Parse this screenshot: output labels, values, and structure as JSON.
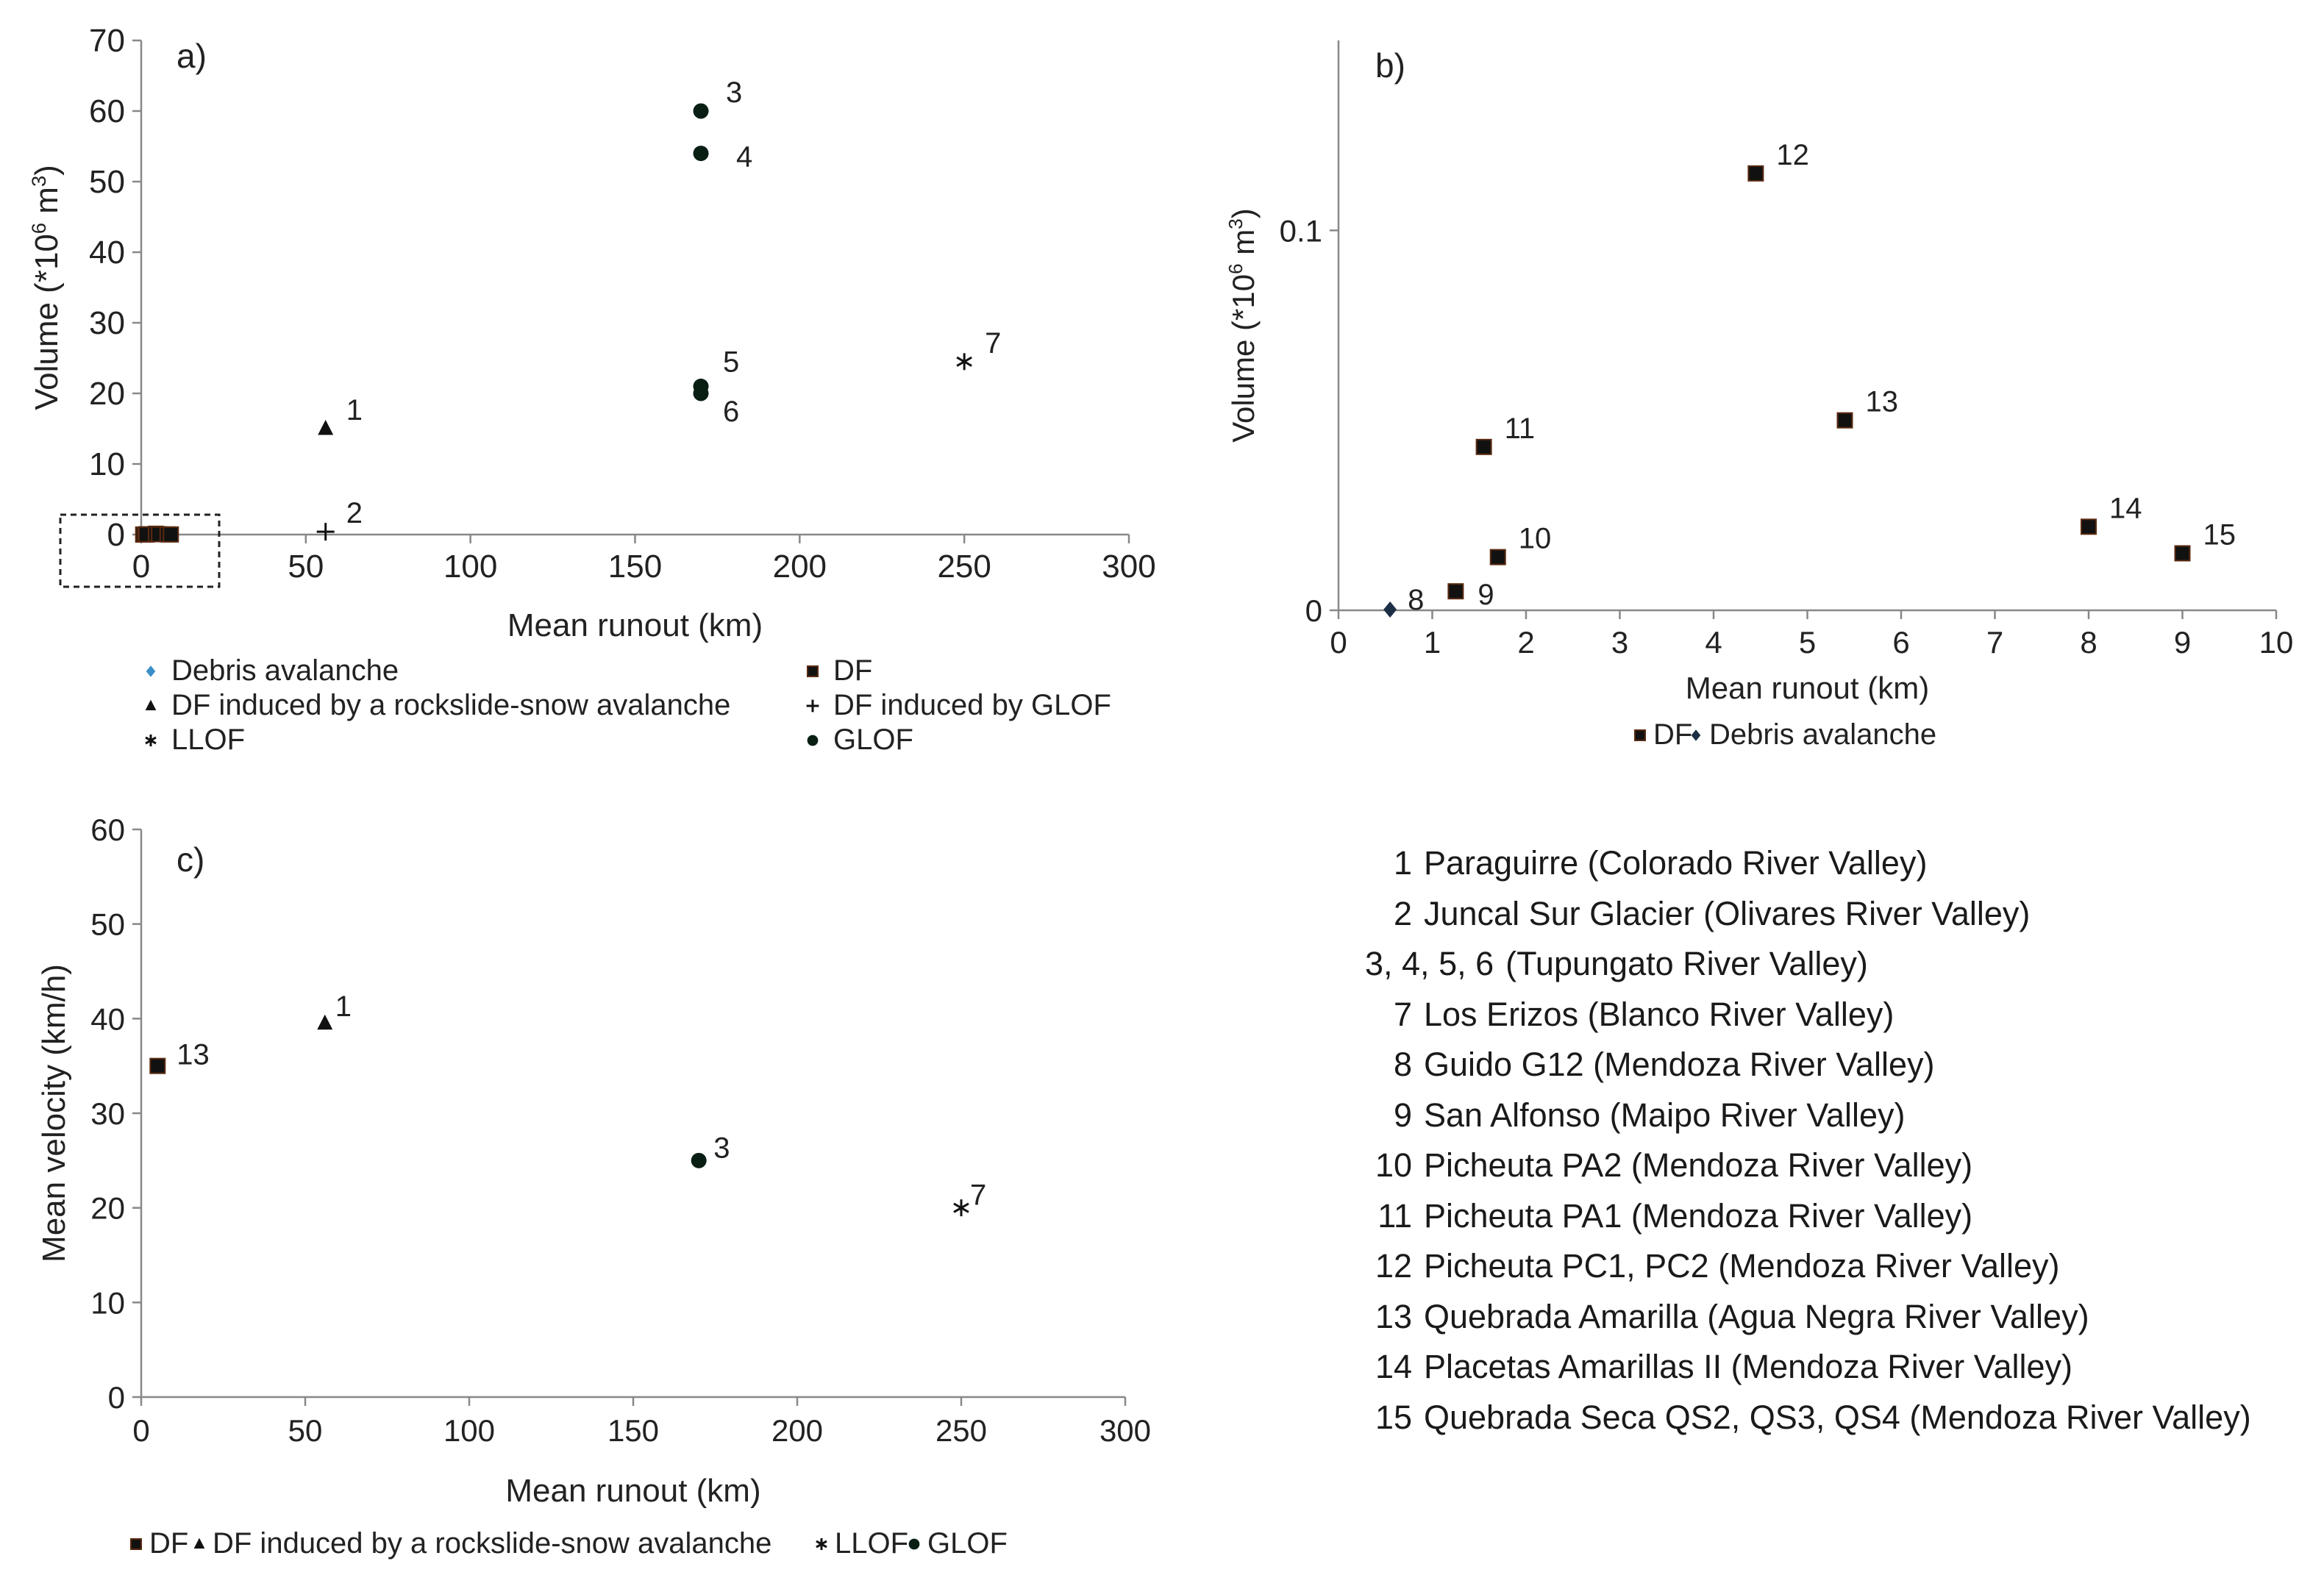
{
  "chart_data": [
    {
      "id": "a",
      "type": "scatter",
      "panel_label": "a)",
      "xlabel": "Mean runout (km)",
      "ylabel": "Volume (*10",
      "ylabel_exp": "6",
      "ylabel_unit": " m",
      "ylabel_unit_exp": "3",
      "ylabel_close": ")",
      "xlim": [
        0,
        300
      ],
      "ylim": [
        0,
        70
      ],
      "xticks": [
        0,
        50,
        100,
        150,
        200,
        250,
        300
      ],
      "yticks": [
        0,
        10,
        20,
        30,
        40,
        50,
        60,
        70
      ],
      "inset_box": true,
      "series": [
        {
          "name": "Debris avalanche",
          "marker": "diamond",
          "color": "#3a8fc7",
          "points": []
        },
        {
          "name": "DF",
          "marker": "square",
          "color": "#111111",
          "points": [
            {
              "x": 0.6,
              "y": 0.0002
            },
            {
              "x": 1.25,
              "y": 0.005
            },
            {
              "x": 1.7,
              "y": 0.014
            },
            {
              "x": 1.55,
              "y": 0.043
            },
            {
              "x": 4.45,
              "y": 0.115
            },
            {
              "x": 5.4,
              "y": 0.05
            },
            {
              "x": 8.0,
              "y": 0.022
            },
            {
              "x": 9.0,
              "y": 0.015
            }
          ]
        },
        {
          "name": "DF induced by a rockslide-snow avalanche",
          "marker": "triangle",
          "color": "#111111",
          "points": [
            {
              "x": 56,
              "y": 15,
              "label": "1"
            }
          ]
        },
        {
          "name": "DF induced by GLOF",
          "marker": "plus",
          "color": "#111111",
          "points": [
            {
              "x": 56,
              "y": 0.4,
              "label": "2"
            }
          ]
        },
        {
          "name": "LLOF",
          "marker": "asterisk",
          "color": "#111111",
          "points": [
            {
              "x": 250,
              "y": 24.5,
              "label": "7"
            }
          ]
        },
        {
          "name": "GLOF",
          "marker": "circle",
          "color": "#0a1f14",
          "points": [
            {
              "x": 170,
              "y": 60,
              "label": "3"
            },
            {
              "x": 170,
              "y": 54,
              "label": "4"
            },
            {
              "x": 170,
              "y": 21,
              "label": "5"
            },
            {
              "x": 170,
              "y": 20,
              "label": "6"
            }
          ]
        }
      ],
      "legend": [
        "Debris avalanche",
        "DF",
        "DF induced by a rockslide-snow avalanche",
        "DF induced by GLOF",
        "LLOF",
        "GLOF"
      ]
    },
    {
      "id": "b",
      "type": "scatter",
      "panel_label": "b)",
      "xlabel": "Mean runout (km)",
      "ylabel": "Volume (*10",
      "ylabel_exp": "6",
      "ylabel_unit": " m",
      "ylabel_unit_exp": "3",
      "ylabel_close": ")",
      "xlim": [
        0,
        10
      ],
      "ylim": [
        0,
        0.15
      ],
      "xticks": [
        0,
        1,
        2,
        3,
        4,
        5,
        6,
        7,
        8,
        9,
        10
      ],
      "yticks": [
        0,
        0.1
      ],
      "ytick_labels": [
        "0",
        "0.1"
      ],
      "series": [
        {
          "name": "DF",
          "marker": "square",
          "color": "#111111",
          "points": [
            {
              "x": 1.25,
              "y": 0.005,
              "label": "9"
            },
            {
              "x": 1.7,
              "y": 0.014,
              "label": "10"
            },
            {
              "x": 1.55,
              "y": 0.043,
              "label": "11"
            },
            {
              "x": 4.45,
              "y": 0.115,
              "label": "12"
            },
            {
              "x": 5.4,
              "y": 0.05,
              "label": "13"
            },
            {
              "x": 8.0,
              "y": 0.022,
              "label": "14"
            },
            {
              "x": 9.0,
              "y": 0.015,
              "label": "15"
            }
          ]
        },
        {
          "name": "Debris avalanche",
          "marker": "diamond",
          "color": "#1c2f45",
          "points": [
            {
              "x": 0.55,
              "y": 0.0002,
              "label": "8"
            }
          ]
        }
      ],
      "legend": [
        "DF",
        "Debris avalanche"
      ]
    },
    {
      "id": "c",
      "type": "scatter",
      "panel_label": "c)",
      "xlabel": "Mean runout (km)",
      "ylabel": "Mean velocity (km/h)",
      "xlim": [
        0,
        300
      ],
      "ylim": [
        0,
        60
      ],
      "xticks": [
        0,
        50,
        100,
        150,
        200,
        250,
        300
      ],
      "yticks": [
        0,
        10,
        20,
        30,
        40,
        50,
        60
      ],
      "series": [
        {
          "name": "DF",
          "marker": "square",
          "color": "#111111",
          "points": [
            {
              "x": 5,
              "y": 35,
              "label": "13"
            }
          ]
        },
        {
          "name": "DF induced by a rockslide-snow avalanche",
          "marker": "triangle",
          "color": "#111111",
          "points": [
            {
              "x": 56,
              "y": 39.5,
              "label": "1"
            }
          ]
        },
        {
          "name": "LLOF",
          "marker": "asterisk",
          "color": "#111111",
          "points": [
            {
              "x": 250,
              "y": 20,
              "label": "7"
            }
          ]
        },
        {
          "name": "GLOF",
          "marker": "circle",
          "color": "#0a1f14",
          "points": [
            {
              "x": 170,
              "y": 25,
              "label": "3"
            }
          ]
        }
      ],
      "legend": [
        "DF",
        "DF induced by a rockslide-snow avalanche",
        "LLOF",
        "GLOF"
      ]
    }
  ],
  "site_labels": [
    {
      "id": "1",
      "name": "Paraguirre (Colorado River Valley)"
    },
    {
      "id": "2",
      "name": "Juncal Sur Glacier (Olivares River Valley)"
    },
    {
      "id": "3, 4, 5, 6",
      "name": " (Tupungato River Valley)"
    },
    {
      "id": "7",
      "name": "Los Erizos (Blanco River Valley)"
    },
    {
      "id": "8",
      "name": "Guido G12 (Mendoza River Valley)"
    },
    {
      "id": "9",
      "name": "San Alfonso (Maipo River Valley)"
    },
    {
      "id": "10",
      "name": "Picheuta PA2 (Mendoza River Valley)"
    },
    {
      "id": "11",
      "name": "Picheuta PA1 (Mendoza River Valley)"
    },
    {
      "id": "12",
      "name": "Picheuta PC1, PC2 (Mendoza River Valley)"
    },
    {
      "id": "13",
      "name": "Quebrada Amarilla (Agua Negra River Valley)"
    },
    {
      "id": "14",
      "name": "Placetas Amarillas II (Mendoza River Valley)"
    },
    {
      "id": "15",
      "name": "Quebrada Seca QS2, QS3, QS4 (Mendoza River Valley)"
    }
  ]
}
